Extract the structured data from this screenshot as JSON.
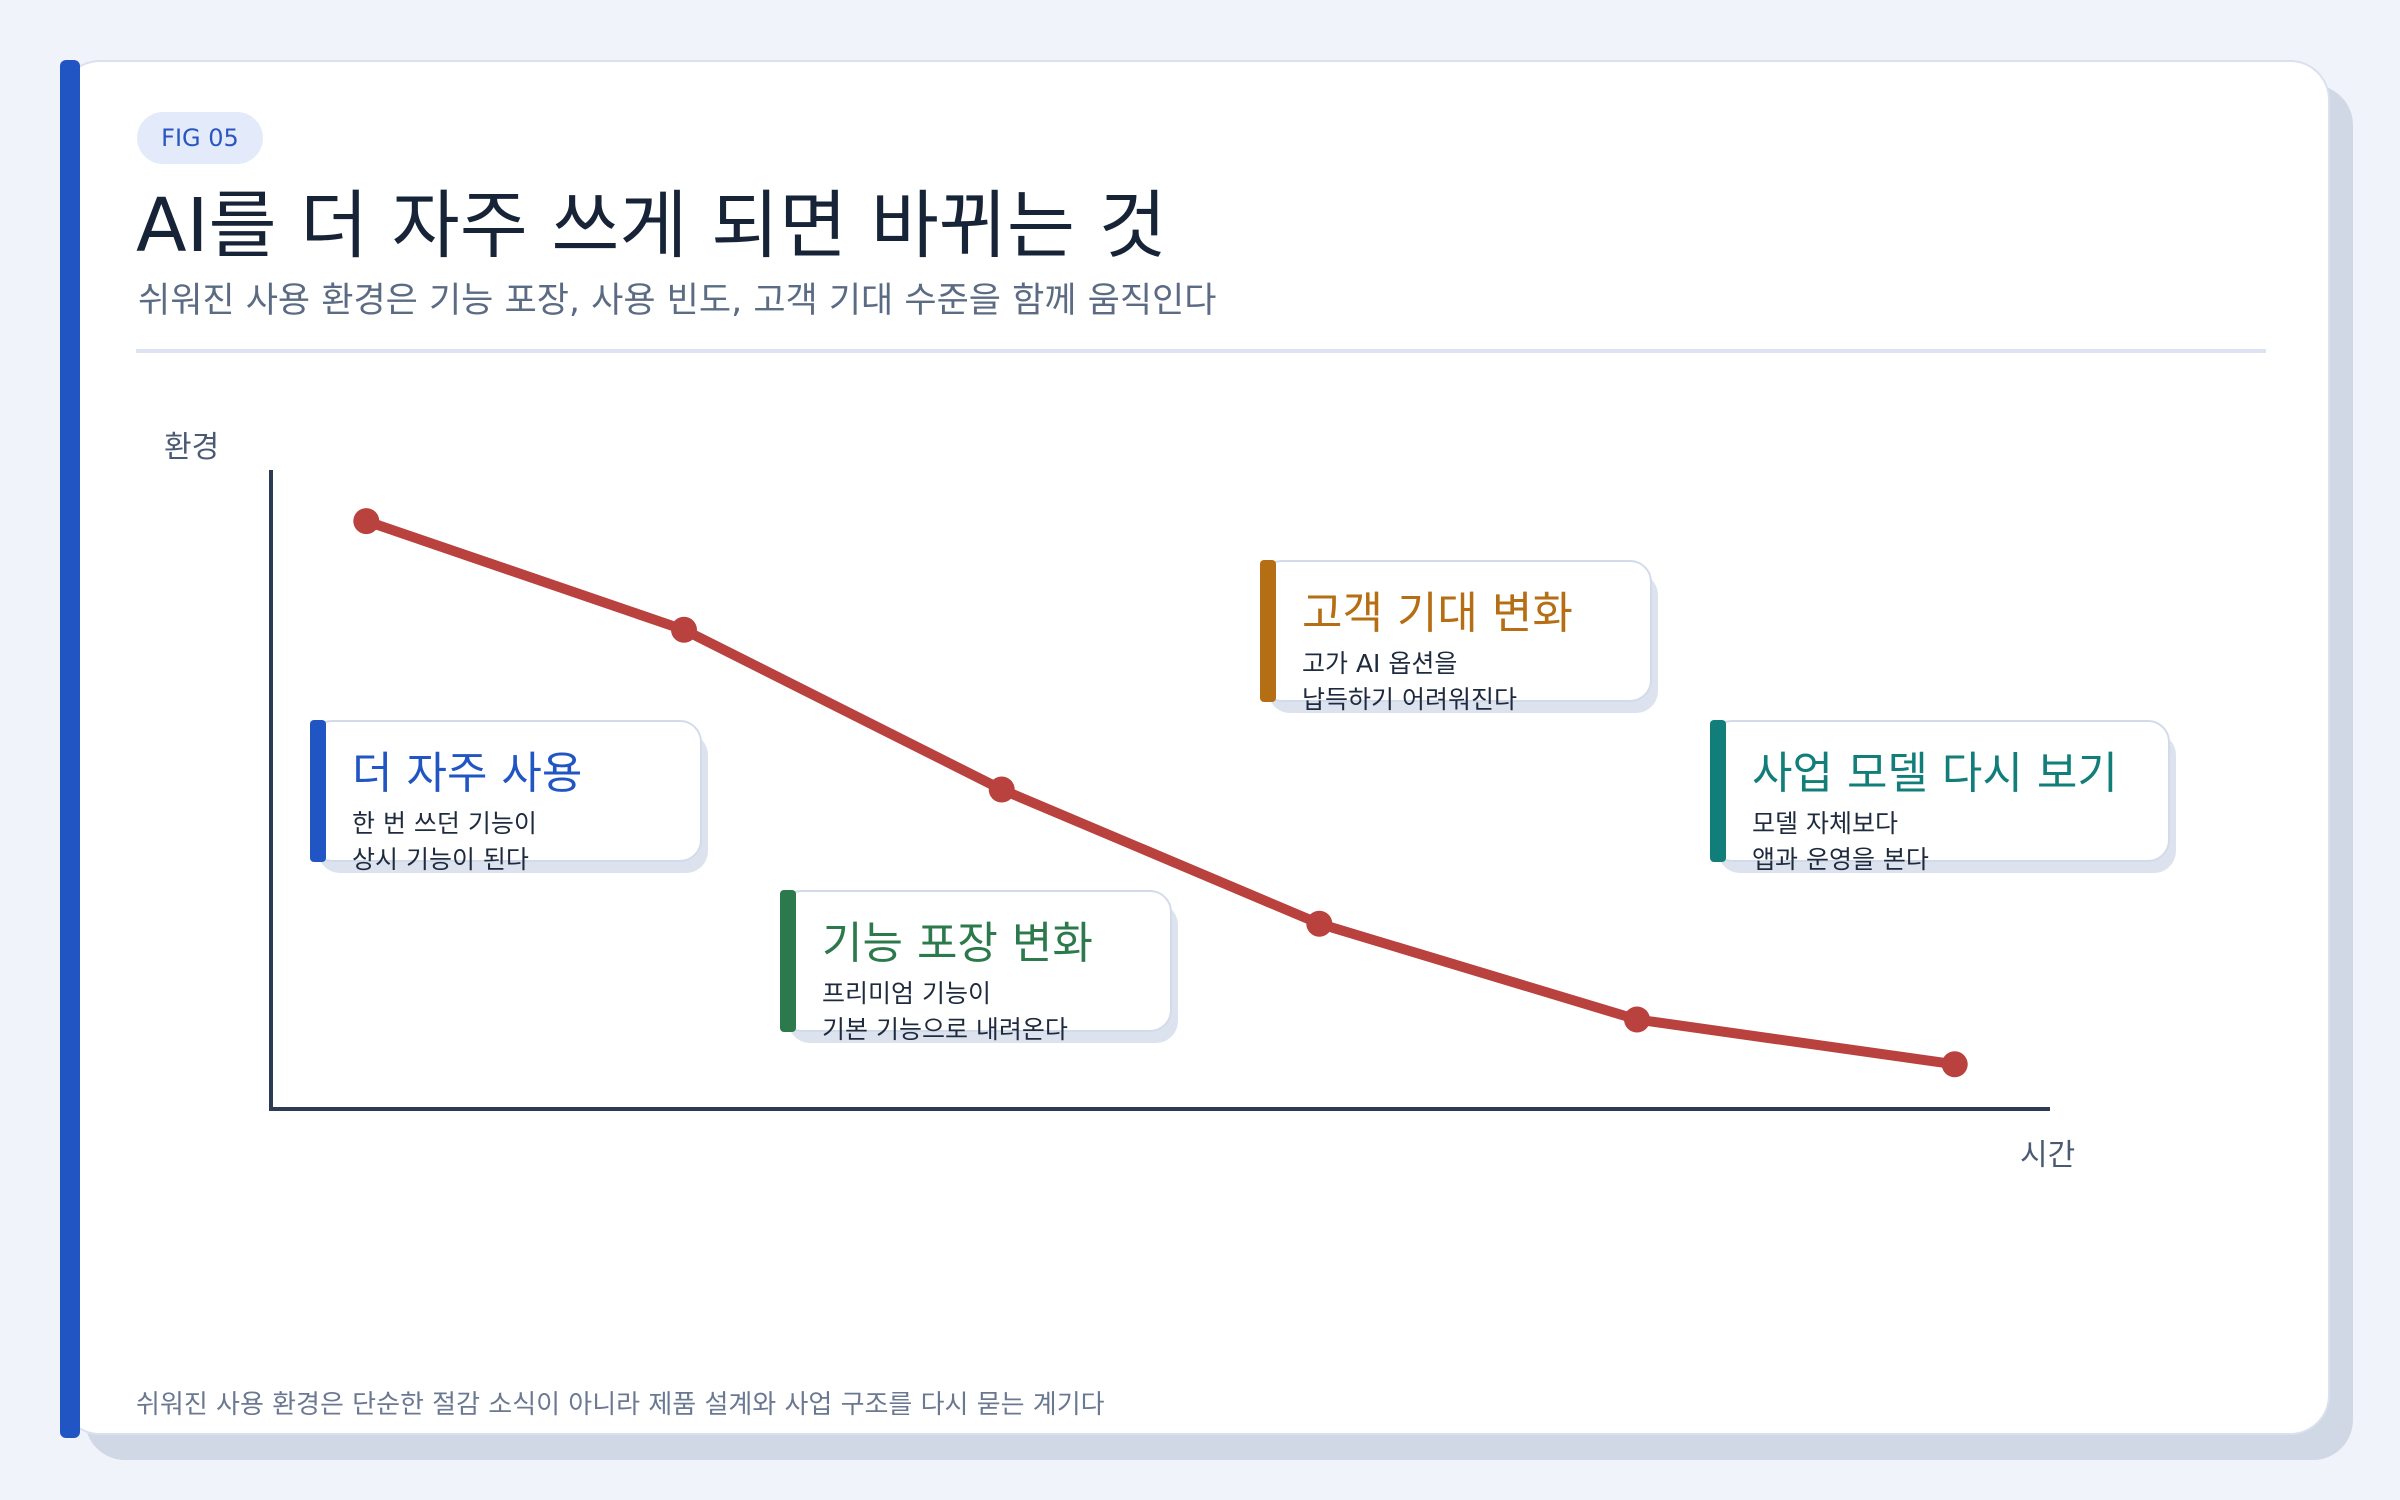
{
  "fig_tag": "FIG 05",
  "title": "AI를 더 자주 쓰게 되면 바뀌는 것",
  "subtitle": "쉬워진 사용 환경은 기능 포장, 사용 빈도, 고객 기대 수준을 함께 움직인다",
  "footnote": "쉬워진 사용 환경은 단순한 절감 소식이 아니라 제품 설계와 사업 구조를 다시 묻는 계기다",
  "axes": {
    "y_label": "환경",
    "x_label": "시간"
  },
  "colors": {
    "accent": "#2255c4",
    "line": "#b9413e",
    "axis": "#2d3b52",
    "blue": "#2255c4",
    "green": "#2c7a4c",
    "amber": "#b66e14",
    "teal": "#127e7a"
  },
  "callouts": [
    {
      "title": "더 자주 사용",
      "lines": [
        "한 번 쓰던 기능이",
        "상시 기능이 된다"
      ],
      "color": "#2255c4"
    },
    {
      "title": "기능 포장 변화",
      "lines": [
        "프리미엄 기능이",
        "기본 기능으로 내려온다"
      ],
      "color": "#2c7a4c"
    },
    {
      "title": "고객 기대 변화",
      "lines": [
        "고가 AI 옵션을",
        "납득하기 어려워진다"
      ],
      "color": "#b66e14"
    },
    {
      "title": "사업 모델 다시 보기",
      "lines": [
        "모델 자체보다",
        "앱과 운영을 본다"
      ],
      "color": "#127e7a"
    }
  ],
  "chart_data": {
    "type": "line",
    "x": [
      1,
      2,
      3,
      4,
      5,
      6
    ],
    "series": [
      {
        "values": [
          0.92,
          0.75,
          0.5,
          0.29,
          0.14,
          0.07
        ]
      }
    ],
    "ylim": [
      0,
      1
    ],
    "xlim": [
      0.7,
      6.3
    ],
    "xlabel": "시간",
    "ylabel": "환경"
  }
}
